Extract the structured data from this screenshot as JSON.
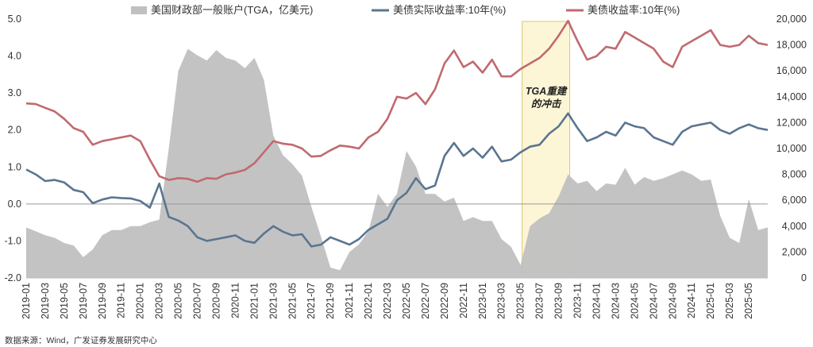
{
  "chart_data": {
    "type": "line",
    "title": "",
    "source": "数据来源：Wind，广发证券发展研究中心",
    "legend": {
      "placement": "top",
      "items": [
        "美国财政部一般账户(TGA，亿美元)",
        "美债实际收益率:10年(%)",
        "美债收益率:10年(%)"
      ]
    },
    "colors": {
      "tga": "#c0c0c0",
      "real": "#5a7590",
      "nominal": "#c06a70",
      "highlight_fill": "#fdf6d6",
      "highlight_stroke": "#d8c77a",
      "zero_line": "#999999"
    },
    "y_left": {
      "range": [
        -2.0,
        5.0
      ],
      "ticks": [
        "5.0",
        "4.0",
        "3.0",
        "2.0",
        "1.0",
        "0.0",
        "-1.0",
        "-2.0"
      ]
    },
    "y_right": {
      "range": [
        0,
        20000
      ],
      "ticks": [
        "20,000",
        "18,000",
        "16,000",
        "14,000",
        "12,000",
        "10,000",
        "8,000",
        "6,000",
        "4,000",
        "2,000",
        "0"
      ]
    },
    "x_ticks": [
      "2019-01",
      "2019-03",
      "2019-05",
      "2019-07",
      "2019-09",
      "2019-11",
      "2020-01",
      "2020-03",
      "2020-05",
      "2020-07",
      "2020-09",
      "2020-11",
      "2021-01",
      "2021-03",
      "2021-05",
      "2021-07",
      "2021-09",
      "2021-11",
      "2022-01",
      "2022-03",
      "2022-05",
      "2022-07",
      "2022-09",
      "2022-11",
      "2023-01",
      "2023-03",
      "2023-05",
      "2023-07",
      "2023-09",
      "2023-11",
      "2024-01",
      "2024-03",
      "2024-05",
      "2024-07",
      "2024-09",
      "2024-11",
      "2025-01",
      "2025-03",
      "2025-05"
    ],
    "annotation": {
      "lines": [
        "TGA重建",
        "的冲击"
      ],
      "start": "2023-05",
      "end": "2023-10"
    },
    "series": [
      {
        "name": "美国财政部一般账户(TGA，亿美元)",
        "axis": "right",
        "kind": "area",
        "points": [
          [
            "2019-01",
            3900
          ],
          [
            "2019-02",
            3600
          ],
          [
            "2019-03",
            3300
          ],
          [
            "2019-04",
            3100
          ],
          [
            "2019-05",
            2700
          ],
          [
            "2019-06",
            2500
          ],
          [
            "2019-07",
            1600
          ],
          [
            "2019-08",
            2200
          ],
          [
            "2019-09",
            3300
          ],
          [
            "2019-10",
            3700
          ],
          [
            "2019-11",
            3700
          ],
          [
            "2019-12",
            4000
          ],
          [
            "2020-01",
            4000
          ],
          [
            "2020-02",
            4300
          ],
          [
            "2020-03",
            4500
          ],
          [
            "2020-04",
            10000
          ],
          [
            "2020-05",
            16000
          ],
          [
            "2020-06",
            17700
          ],
          [
            "2020-07",
            17200
          ],
          [
            "2020-08",
            16800
          ],
          [
            "2020-09",
            17600
          ],
          [
            "2020-10",
            17000
          ],
          [
            "2020-11",
            16800
          ],
          [
            "2020-12",
            16200
          ],
          [
            "2021-01",
            17000
          ],
          [
            "2021-02",
            15300
          ],
          [
            "2021-03",
            11000
          ],
          [
            "2021-04",
            9500
          ],
          [
            "2021-05",
            8800
          ],
          [
            "2021-06",
            7900
          ],
          [
            "2021-07",
            5500
          ],
          [
            "2021-08",
            3200
          ],
          [
            "2021-09",
            800
          ],
          [
            "2021-10",
            600
          ],
          [
            "2021-11",
            2000
          ],
          [
            "2021-12",
            2600
          ],
          [
            "2022-01",
            3600
          ],
          [
            "2022-02",
            6500
          ],
          [
            "2022-03",
            5500
          ],
          [
            "2022-04",
            6500
          ],
          [
            "2022-05",
            9800
          ],
          [
            "2022-06",
            8600
          ],
          [
            "2022-07",
            6500
          ],
          [
            "2022-08",
            6500
          ],
          [
            "2022-09",
            5900
          ],
          [
            "2022-10",
            6200
          ],
          [
            "2022-11",
            4400
          ],
          [
            "2022-12",
            4700
          ],
          [
            "2023-01",
            4400
          ],
          [
            "2023-02",
            4400
          ],
          [
            "2023-03",
            3000
          ],
          [
            "2023-04",
            2400
          ],
          [
            "2023-05",
            1000
          ],
          [
            "2023-06",
            4000
          ],
          [
            "2023-07",
            4600
          ],
          [
            "2023-08",
            5000
          ],
          [
            "2023-09",
            6300
          ],
          [
            "2023-10",
            8000
          ],
          [
            "2023-11",
            7300
          ],
          [
            "2023-12",
            7500
          ],
          [
            "2024-01",
            6700
          ],
          [
            "2024-02",
            7300
          ],
          [
            "2024-03",
            7200
          ],
          [
            "2024-04",
            8500
          ],
          [
            "2024-05",
            7200
          ],
          [
            "2024-06",
            7800
          ],
          [
            "2024-07",
            7500
          ],
          [
            "2024-08",
            7700
          ],
          [
            "2024-09",
            8000
          ],
          [
            "2024-10",
            8300
          ],
          [
            "2024-11",
            8000
          ],
          [
            "2024-12",
            7500
          ],
          [
            "2025-01",
            7600
          ],
          [
            "2025-02",
            4800
          ],
          [
            "2025-03",
            3100
          ],
          [
            "2025-04",
            2700
          ],
          [
            "2025-05",
            6100
          ],
          [
            "2025-06",
            3700
          ],
          [
            "2025-07",
            3900
          ]
        ]
      },
      {
        "name": "美债实际收益率:10年(%)",
        "axis": "left",
        "kind": "line",
        "points": [
          [
            "2019-01",
            0.93
          ],
          [
            "2019-02",
            0.8
          ],
          [
            "2019-03",
            0.62
          ],
          [
            "2019-04",
            0.65
          ],
          [
            "2019-05",
            0.58
          ],
          [
            "2019-06",
            0.38
          ],
          [
            "2019-07",
            0.32
          ],
          [
            "2019-08",
            0.02
          ],
          [
            "2019-09",
            0.12
          ],
          [
            "2019-10",
            0.18
          ],
          [
            "2019-11",
            0.16
          ],
          [
            "2019-12",
            0.15
          ],
          [
            "2020-01",
            0.08
          ],
          [
            "2020-02",
            -0.1
          ],
          [
            "2020-03",
            0.55
          ],
          [
            "2020-04",
            -0.35
          ],
          [
            "2020-05",
            -0.45
          ],
          [
            "2020-06",
            -0.6
          ],
          [
            "2020-07",
            -0.9
          ],
          [
            "2020-08",
            -1.0
          ],
          [
            "2020-09",
            -0.95
          ],
          [
            "2020-10",
            -0.9
          ],
          [
            "2020-11",
            -0.85
          ],
          [
            "2020-12",
            -1.0
          ],
          [
            "2021-01",
            -1.05
          ],
          [
            "2021-02",
            -0.8
          ],
          [
            "2021-03",
            -0.6
          ],
          [
            "2021-04",
            -0.75
          ],
          [
            "2021-05",
            -0.85
          ],
          [
            "2021-06",
            -0.82
          ],
          [
            "2021-07",
            -1.15
          ],
          [
            "2021-08",
            -1.1
          ],
          [
            "2021-09",
            -0.9
          ],
          [
            "2021-10",
            -1.0
          ],
          [
            "2021-11",
            -1.1
          ],
          [
            "2021-12",
            -0.95
          ],
          [
            "2022-01",
            -0.7
          ],
          [
            "2022-02",
            -0.55
          ],
          [
            "2022-03",
            -0.4
          ],
          [
            "2022-04",
            0.1
          ],
          [
            "2022-05",
            0.3
          ],
          [
            "2022-06",
            0.7
          ],
          [
            "2022-07",
            0.4
          ],
          [
            "2022-08",
            0.5
          ],
          [
            "2022-09",
            1.3
          ],
          [
            "2022-10",
            1.65
          ],
          [
            "2022-11",
            1.3
          ],
          [
            "2022-12",
            1.5
          ],
          [
            "2023-01",
            1.25
          ],
          [
            "2023-02",
            1.55
          ],
          [
            "2023-03",
            1.15
          ],
          [
            "2023-04",
            1.2
          ],
          [
            "2023-05",
            1.4
          ],
          [
            "2023-06",
            1.55
          ],
          [
            "2023-07",
            1.6
          ],
          [
            "2023-08",
            1.9
          ],
          [
            "2023-09",
            2.1
          ],
          [
            "2023-10",
            2.45
          ],
          [
            "2023-11",
            2.05
          ],
          [
            "2023-12",
            1.7
          ],
          [
            "2024-01",
            1.8
          ],
          [
            "2024-02",
            1.95
          ],
          [
            "2024-03",
            1.85
          ],
          [
            "2024-04",
            2.2
          ],
          [
            "2024-05",
            2.1
          ],
          [
            "2024-06",
            2.05
          ],
          [
            "2024-07",
            1.8
          ],
          [
            "2024-08",
            1.7
          ],
          [
            "2024-09",
            1.6
          ],
          [
            "2024-10",
            1.95
          ],
          [
            "2024-11",
            2.1
          ],
          [
            "2024-12",
            2.15
          ],
          [
            "2025-01",
            2.2
          ],
          [
            "2025-02",
            2.0
          ],
          [
            "2025-03",
            1.9
          ],
          [
            "2025-04",
            2.05
          ],
          [
            "2025-05",
            2.15
          ],
          [
            "2025-06",
            2.05
          ],
          [
            "2025-07",
            2.0
          ]
        ]
      },
      {
        "name": "美债收益率:10年(%)",
        "axis": "left",
        "kind": "line",
        "points": [
          [
            "2019-01",
            2.72
          ],
          [
            "2019-02",
            2.7
          ],
          [
            "2019-03",
            2.6
          ],
          [
            "2019-04",
            2.5
          ],
          [
            "2019-05",
            2.3
          ],
          [
            "2019-06",
            2.05
          ],
          [
            "2019-07",
            1.95
          ],
          [
            "2019-08",
            1.6
          ],
          [
            "2019-09",
            1.7
          ],
          [
            "2019-10",
            1.75
          ],
          [
            "2019-11",
            1.8
          ],
          [
            "2019-12",
            1.85
          ],
          [
            "2020-01",
            1.7
          ],
          [
            "2020-02",
            1.2
          ],
          [
            "2020-03",
            0.75
          ],
          [
            "2020-04",
            0.65
          ],
          [
            "2020-05",
            0.7
          ],
          [
            "2020-06",
            0.68
          ],
          [
            "2020-07",
            0.6
          ],
          [
            "2020-08",
            0.7
          ],
          [
            "2020-09",
            0.68
          ],
          [
            "2020-10",
            0.8
          ],
          [
            "2020-11",
            0.85
          ],
          [
            "2020-12",
            0.92
          ],
          [
            "2021-01",
            1.1
          ],
          [
            "2021-02",
            1.4
          ],
          [
            "2021-03",
            1.7
          ],
          [
            "2021-04",
            1.63
          ],
          [
            "2021-05",
            1.6
          ],
          [
            "2021-06",
            1.5
          ],
          [
            "2021-07",
            1.28
          ],
          [
            "2021-08",
            1.3
          ],
          [
            "2021-09",
            1.45
          ],
          [
            "2021-10",
            1.58
          ],
          [
            "2021-11",
            1.55
          ],
          [
            "2021-12",
            1.5
          ],
          [
            "2022-01",
            1.8
          ],
          [
            "2022-02",
            1.95
          ],
          [
            "2022-03",
            2.3
          ],
          [
            "2022-04",
            2.9
          ],
          [
            "2022-05",
            2.85
          ],
          [
            "2022-06",
            3.0
          ],
          [
            "2022-07",
            2.7
          ],
          [
            "2022-08",
            3.1
          ],
          [
            "2022-09",
            3.8
          ],
          [
            "2022-10",
            4.15
          ],
          [
            "2022-11",
            3.7
          ],
          [
            "2022-12",
            3.85
          ],
          [
            "2023-01",
            3.55
          ],
          [
            "2023-02",
            3.9
          ],
          [
            "2023-03",
            3.45
          ],
          [
            "2023-04",
            3.45
          ],
          [
            "2023-05",
            3.65
          ],
          [
            "2023-06",
            3.8
          ],
          [
            "2023-07",
            3.95
          ],
          [
            "2023-08",
            4.2
          ],
          [
            "2023-09",
            4.55
          ],
          [
            "2023-10",
            4.95
          ],
          [
            "2023-11",
            4.4
          ],
          [
            "2023-12",
            3.9
          ],
          [
            "2024-01",
            4.0
          ],
          [
            "2024-02",
            4.25
          ],
          [
            "2024-03",
            4.2
          ],
          [
            "2024-04",
            4.65
          ],
          [
            "2024-05",
            4.5
          ],
          [
            "2024-06",
            4.35
          ],
          [
            "2024-07",
            4.2
          ],
          [
            "2024-08",
            3.85
          ],
          [
            "2024-09",
            3.7
          ],
          [
            "2024-10",
            4.25
          ],
          [
            "2024-11",
            4.4
          ],
          [
            "2024-12",
            4.55
          ],
          [
            "2025-01",
            4.7
          ],
          [
            "2025-02",
            4.3
          ],
          [
            "2025-03",
            4.25
          ],
          [
            "2025-04",
            4.3
          ],
          [
            "2025-05",
            4.55
          ],
          [
            "2025-06",
            4.35
          ],
          [
            "2025-07",
            4.3
          ]
        ]
      }
    ]
  }
}
